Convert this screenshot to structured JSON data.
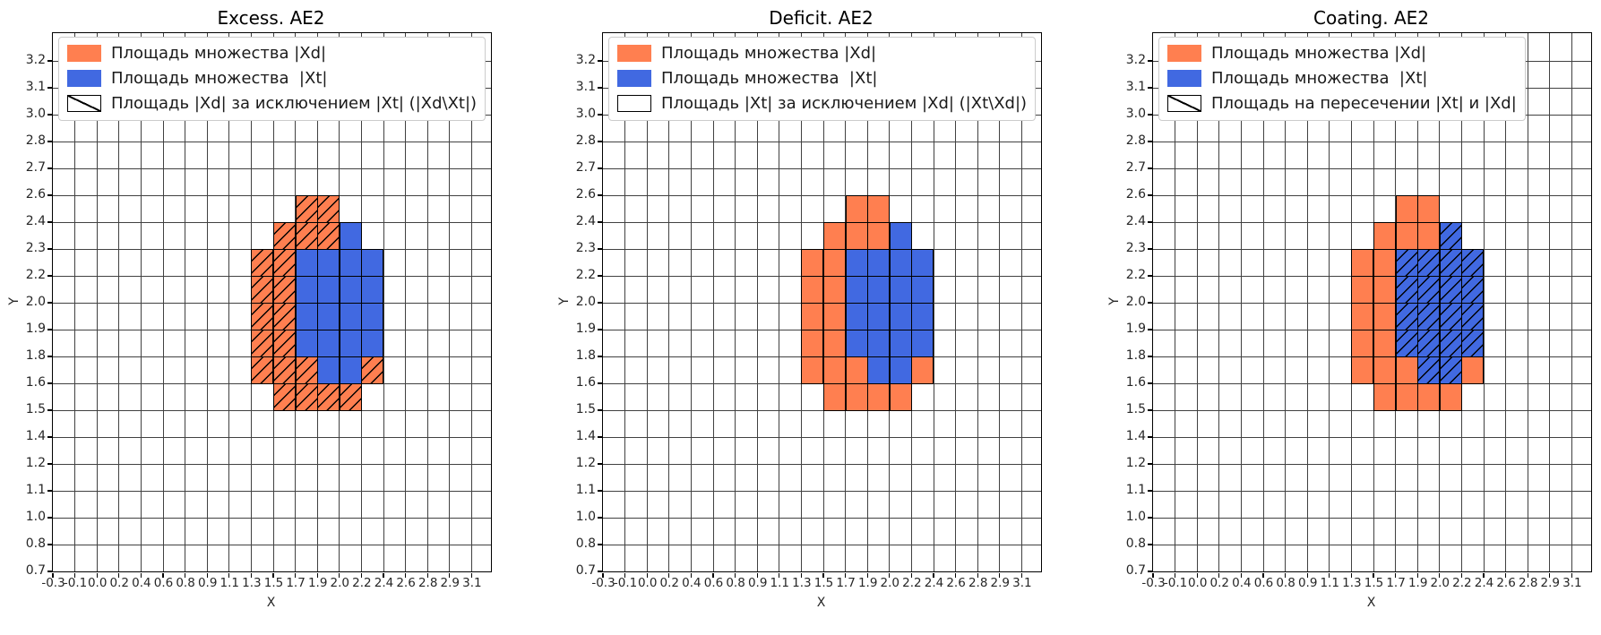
{
  "figure": {
    "background": "#ffffff"
  },
  "colors": {
    "xd": "#FF7F50",
    "xt": "#4169E1",
    "grid": "#414141",
    "frame": "#000000",
    "hatch": "#000000",
    "legend_edge": "#cccccc"
  },
  "axes": {
    "xlabel": "X",
    "ylabel": "Y",
    "x_ticks": [
      "-0.3",
      "-0.1",
      "0.0",
      "0.2",
      "0.4",
      "0.6",
      "0.8",
      "0.9",
      "1.1",
      "1.3",
      "1.5",
      "1.7",
      "1.9",
      "2.0",
      "2.2",
      "2.4",
      "2.6",
      "2.8",
      "2.9",
      "3.1"
    ],
    "y_ticks": [
      "0.7",
      "0.8",
      "1.0",
      "1.1",
      "1.2",
      "1.4",
      "1.5",
      "1.6",
      "1.8",
      "1.9",
      "2.0",
      "2.2",
      "2.3",
      "2.4",
      "2.6",
      "2.7",
      "2.8",
      "3.0",
      "3.1",
      "3.2"
    ]
  },
  "plots": [
    {
      "title": "Excess. AE2",
      "hatch_cells": "Xd",
      "legend": [
        {
          "swatch": "xd",
          "label": "Площадь множества |Xd|"
        },
        {
          "swatch": "xt",
          "label": "Площадь множества  |Xt|"
        },
        {
          "swatch": "hatch",
          "label": "Площадь |Xd| за исключением |Xt| (|Xd\\Xt|)"
        }
      ]
    },
    {
      "title": "Deficit. AE2",
      "hatch_cells": "none",
      "legend": [
        {
          "swatch": "xd",
          "label": "Площадь множества |Xd|"
        },
        {
          "swatch": "xt",
          "label": "Площадь множества  |Xt|"
        },
        {
          "swatch": "empty",
          "label": "Площадь |Xt| за исключением |Xd| (|Xt\\Xd|)"
        }
      ]
    },
    {
      "title": "Coating. AE2",
      "hatch_cells": "Xt",
      "legend": [
        {
          "swatch": "xd",
          "label": "Площадь множества |Xd|"
        },
        {
          "swatch": "xt",
          "label": "Площадь множества  |Xt|"
        },
        {
          "swatch": "hatch",
          "label": "Площадь на пересечении |Xt| и |Xd|"
        }
      ]
    }
  ],
  "chart_data": {
    "type": "heatmap",
    "description": "Three identical cell-grid set plots. Each colored cell spans one grid cell; x/y give the tick label of the cell's left/bottom edge. set=Xd is orange, set=Xt is blue. Hatching ('/' lines): plot 'Excess. AE2' hatches Xd cells, 'Deficit. AE2' hatches none, 'Coating. AE2' hatches Xt cells.",
    "titles": [
      "Excess. AE2",
      "Deficit. AE2",
      "Coating. AE2"
    ],
    "xlabel": "X",
    "ylabel": "Y",
    "x_tick_labels": [
      "-0.3",
      "-0.1",
      "0.0",
      "0.2",
      "0.4",
      "0.6",
      "0.8",
      "0.9",
      "1.1",
      "1.3",
      "1.5",
      "1.7",
      "1.9",
      "2.0",
      "2.2",
      "2.4",
      "2.6",
      "2.8",
      "2.9",
      "3.1"
    ],
    "y_tick_labels": [
      "0.7",
      "0.8",
      "1.0",
      "1.1",
      "1.2",
      "1.4",
      "1.5",
      "1.6",
      "1.8",
      "1.9",
      "2.0",
      "2.2",
      "2.3",
      "2.4",
      "2.6",
      "2.7",
      "2.8",
      "3.0",
      "3.1",
      "3.2"
    ],
    "grid": true,
    "legend_position": "upper left",
    "cells": [
      {
        "x": "1.7",
        "y": "2.4",
        "set": "Xd"
      },
      {
        "x": "1.9",
        "y": "2.4",
        "set": "Xd"
      },
      {
        "x": "1.5",
        "y": "2.3",
        "set": "Xd"
      },
      {
        "x": "1.7",
        "y": "2.3",
        "set": "Xd"
      },
      {
        "x": "1.9",
        "y": "2.3",
        "set": "Xd"
      },
      {
        "x": "2.0",
        "y": "2.3",
        "set": "Xt"
      },
      {
        "x": "1.3",
        "y": "2.2",
        "set": "Xd"
      },
      {
        "x": "1.5",
        "y": "2.2",
        "set": "Xd"
      },
      {
        "x": "1.7",
        "y": "2.2",
        "set": "Xt"
      },
      {
        "x": "1.9",
        "y": "2.2",
        "set": "Xt"
      },
      {
        "x": "2.0",
        "y": "2.2",
        "set": "Xt"
      },
      {
        "x": "2.2",
        "y": "2.2",
        "set": "Xt"
      },
      {
        "x": "1.3",
        "y": "2.0",
        "set": "Xd"
      },
      {
        "x": "1.5",
        "y": "2.0",
        "set": "Xd"
      },
      {
        "x": "1.7",
        "y": "2.0",
        "set": "Xt"
      },
      {
        "x": "1.9",
        "y": "2.0",
        "set": "Xt"
      },
      {
        "x": "2.0",
        "y": "2.0",
        "set": "Xt"
      },
      {
        "x": "2.2",
        "y": "2.0",
        "set": "Xt"
      },
      {
        "x": "1.3",
        "y": "1.9",
        "set": "Xd"
      },
      {
        "x": "1.5",
        "y": "1.9",
        "set": "Xd"
      },
      {
        "x": "1.7",
        "y": "1.9",
        "set": "Xt"
      },
      {
        "x": "1.9",
        "y": "1.9",
        "set": "Xt"
      },
      {
        "x": "2.0",
        "y": "1.9",
        "set": "Xt"
      },
      {
        "x": "2.2",
        "y": "1.9",
        "set": "Xt"
      },
      {
        "x": "1.3",
        "y": "1.8",
        "set": "Xd"
      },
      {
        "x": "1.5",
        "y": "1.8",
        "set": "Xd"
      },
      {
        "x": "1.7",
        "y": "1.8",
        "set": "Xt"
      },
      {
        "x": "1.9",
        "y": "1.8",
        "set": "Xt"
      },
      {
        "x": "2.0",
        "y": "1.8",
        "set": "Xt"
      },
      {
        "x": "2.2",
        "y": "1.8",
        "set": "Xt"
      },
      {
        "x": "1.3",
        "y": "1.6",
        "set": "Xd"
      },
      {
        "x": "1.5",
        "y": "1.6",
        "set": "Xd"
      },
      {
        "x": "1.7",
        "y": "1.6",
        "set": "Xd"
      },
      {
        "x": "1.9",
        "y": "1.6",
        "set": "Xt"
      },
      {
        "x": "2.0",
        "y": "1.6",
        "set": "Xt"
      },
      {
        "x": "2.2",
        "y": "1.6",
        "set": "Xd"
      },
      {
        "x": "1.5",
        "y": "1.5",
        "set": "Xd"
      },
      {
        "x": "1.7",
        "y": "1.5",
        "set": "Xd"
      },
      {
        "x": "1.9",
        "y": "1.5",
        "set": "Xd"
      },
      {
        "x": "2.0",
        "y": "1.5",
        "set": "Xd"
      }
    ]
  }
}
